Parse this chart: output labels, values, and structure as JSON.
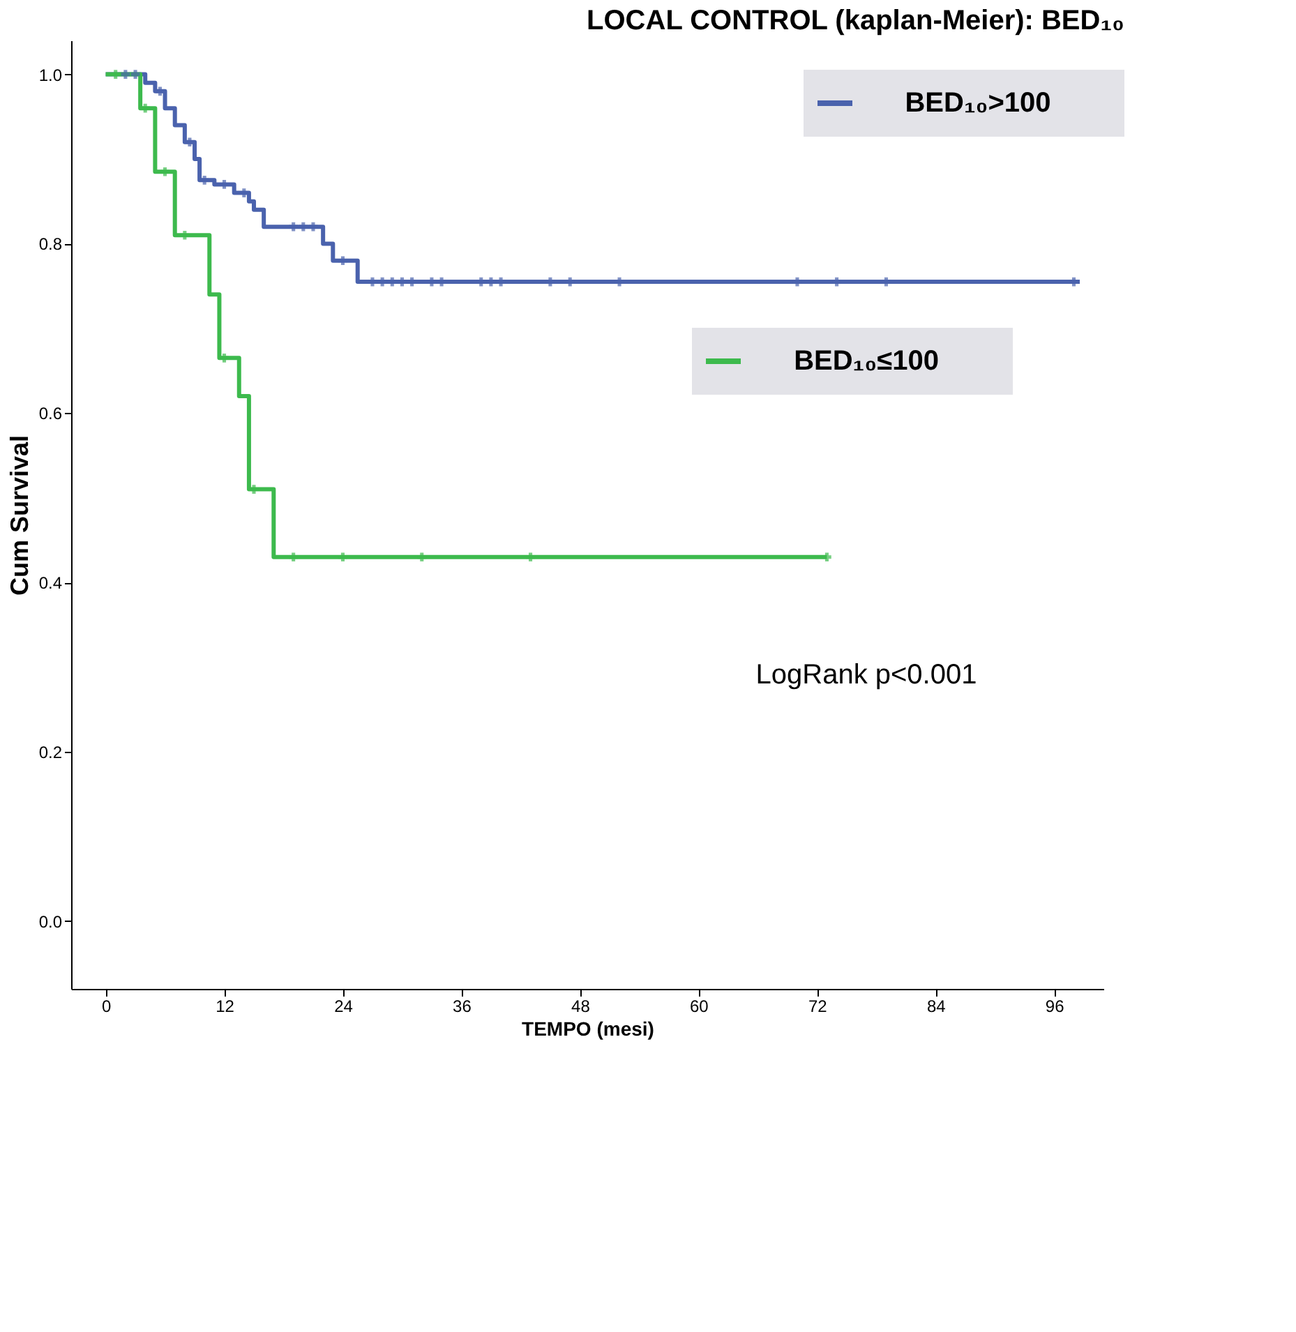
{
  "chart_data": {
    "type": "step",
    "title": "LOCAL CONTROL (kaplan-Meier): BED₁₀",
    "xlabel": "TEMPO (mesi)",
    "ylabel": "Cum Survival",
    "xlim": [
      -3.5,
      101
    ],
    "ylim": [
      -0.08,
      1.04
    ],
    "xticks": [
      0,
      12,
      24,
      36,
      48,
      60,
      72,
      84,
      96
    ],
    "yticks": [
      {
        "value": 0,
        "label": "0.0"
      },
      0.2,
      0.4,
      0.6,
      0.8,
      {
        "value": 1,
        "label": "1.0"
      }
    ],
    "grid": false,
    "legend": "top right",
    "line_style": "solid",
    "annotations": [
      "LogRank p<0.001"
    ],
    "series": [
      {
        "name": "BED₁₀>100",
        "color": "#4a62ad",
        "x": [
          0,
          4,
          5,
          6,
          7,
          8,
          9,
          9.5,
          11,
          13,
          14.5,
          15,
          16,
          22,
          23,
          25.5,
          98.6
        ],
        "values": [
          1,
          0.99,
          0.98,
          0.96,
          0.94,
          0.92,
          0.9,
          0.875,
          0.87,
          0.86,
          0.85,
          0.84,
          0.82,
          0.8,
          0.78,
          0.755,
          0.755
        ]
      },
      {
        "name": "BED₁₀≤100",
        "color": "#3dba4d",
        "x": [
          0,
          3.5,
          5,
          7,
          10.5,
          11.5,
          13.5,
          14.5,
          17,
          73
        ],
        "values": [
          1,
          0.96,
          0.885,
          0.81,
          0.74,
          0.665,
          0.62,
          0.51,
          0.43,
          0.43
        ]
      },
      {
        "type": "scatter",
        "marker": "cross",
        "color": "#4a62ad",
        "x": [
          2,
          3,
          5.5,
          8.5,
          10,
          12,
          14,
          19,
          20,
          21,
          24,
          27,
          28,
          29,
          30,
          31,
          33,
          34,
          38,
          39,
          40,
          45,
          47,
          52,
          70,
          74,
          79,
          98
        ],
        "values": [
          1,
          1,
          0.98,
          0.92,
          0.875,
          0.87,
          0.86,
          0.82,
          0.82,
          0.82,
          0.78,
          0.755,
          0.755,
          0.755,
          0.755,
          0.755,
          0.755,
          0.755,
          0.755,
          0.755,
          0.755,
          0.755,
          0.755,
          0.755,
          0.755,
          0.755,
          0.755,
          0.755
        ]
      },
      {
        "type": "scatter",
        "marker": "cross",
        "color": "#3dba4d",
        "x": [
          1,
          4,
          6,
          8,
          12,
          15,
          19,
          24,
          32,
          43,
          73
        ],
        "values": [
          1,
          0.96,
          0.885,
          0.81,
          0.665,
          0.51,
          0.43,
          0.43,
          0.43,
          0.43,
          0.43
        ]
      }
    ]
  }
}
